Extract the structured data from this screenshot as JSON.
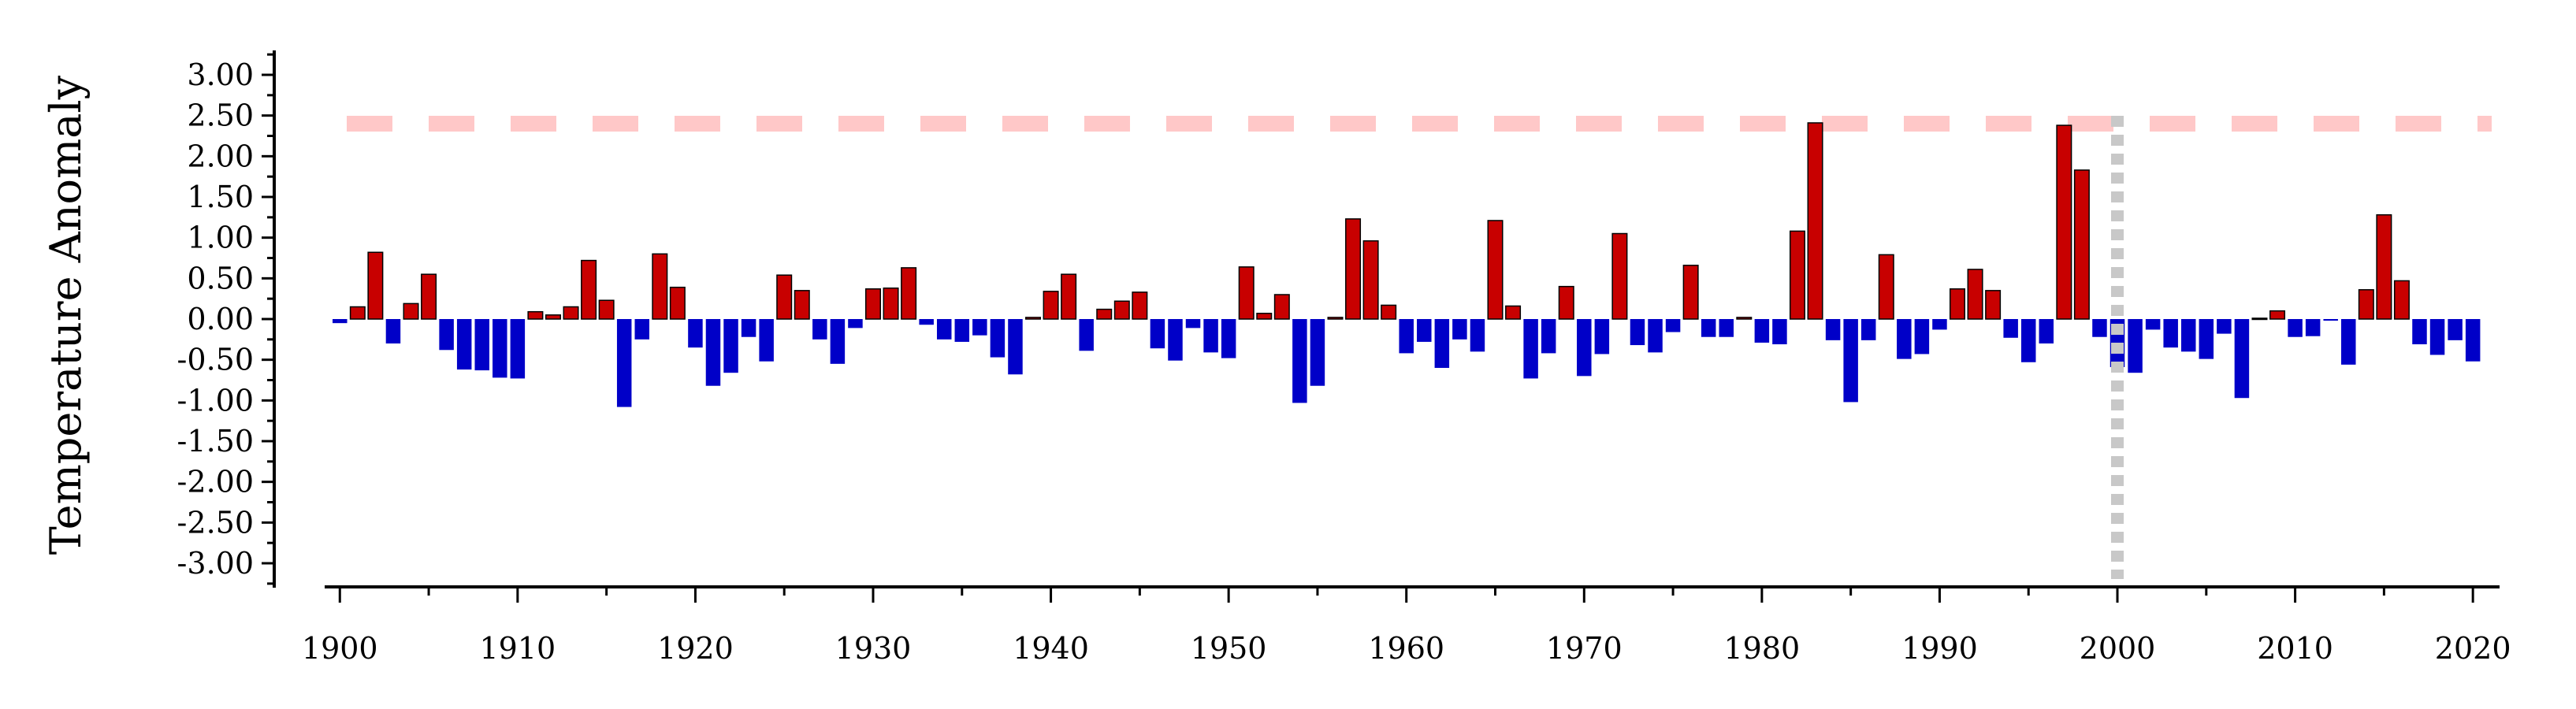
{
  "chart_data": {
    "type": "bar",
    "ylabel": "Temperature Anomaly",
    "xlabel": "",
    "title": "",
    "x_start": 1900,
    "values": [
      -0.05,
      0.15,
      0.82,
      -0.3,
      0.19,
      0.55,
      -0.38,
      -0.62,
      -0.63,
      -0.72,
      -0.73,
      0.09,
      0.05,
      0.15,
      0.72,
      0.23,
      -1.08,
      -0.25,
      0.8,
      0.39,
      -0.35,
      -0.82,
      -0.66,
      -0.22,
      -0.52,
      0.54,
      0.35,
      -0.25,
      -0.55,
      -0.11,
      0.37,
      0.38,
      0.63,
      -0.07,
      -0.25,
      -0.28,
      -0.2,
      -0.47,
      -0.68,
      0.02,
      0.34,
      0.55,
      -0.39,
      0.12,
      0.22,
      0.33,
      -0.36,
      -0.51,
      -0.11,
      -0.41,
      -0.48,
      0.64,
      0.07,
      0.3,
      -1.03,
      -0.82,
      0.02,
      1.23,
      0.96,
      0.17,
      -0.42,
      -0.28,
      -0.6,
      -0.25,
      -0.4,
      1.21,
      0.16,
      -0.73,
      -0.42,
      0.4,
      -0.7,
      -0.43,
      1.05,
      -0.32,
      -0.41,
      -0.16,
      0.66,
      -0.22,
      -0.22,
      0.02,
      -0.29,
      -0.31,
      1.08,
      2.41,
      -0.26,
      -1.02,
      -0.26,
      0.79,
      -0.49,
      -0.43,
      -0.13,
      0.37,
      0.61,
      0.35,
      -0.23,
      -0.53,
      -0.3,
      2.38,
      1.83,
      -0.22,
      -0.59,
      -0.66,
      -0.13,
      -0.35,
      -0.4,
      -0.49,
      -0.18,
      -0.97,
      0.01,
      0.1,
      -0.22,
      -0.21,
      -0.02,
      -0.56,
      0.36,
      1.28,
      0.47,
      -0.31,
      -0.44,
      -0.26,
      -0.52
    ],
    "y_ticks": [
      "3.00",
      "2.50",
      "2.00",
      "1.50",
      "1.00",
      "0.50",
      "0.00",
      "-0.50",
      "-1.00",
      "-1.50",
      "-2.00",
      "-2.50",
      "-3.00"
    ],
    "x_ticks": [
      "1900",
      "1910",
      "1920",
      "1930",
      "1940",
      "1950",
      "1960",
      "1970",
      "1980",
      "1990",
      "2000",
      "2010",
      "2020"
    ],
    "ylim": [
      -3.3,
      3.3
    ],
    "xlim": [
      1899.5,
      2021.5
    ],
    "threshold_line": 2.4,
    "vertical_marker_x": 2000,
    "colors": {
      "positive": "#c80000",
      "negative": "#0000c8",
      "threshold": "#ffc8c8",
      "marker": "#c8c8c8",
      "axis": "#000000"
    }
  }
}
